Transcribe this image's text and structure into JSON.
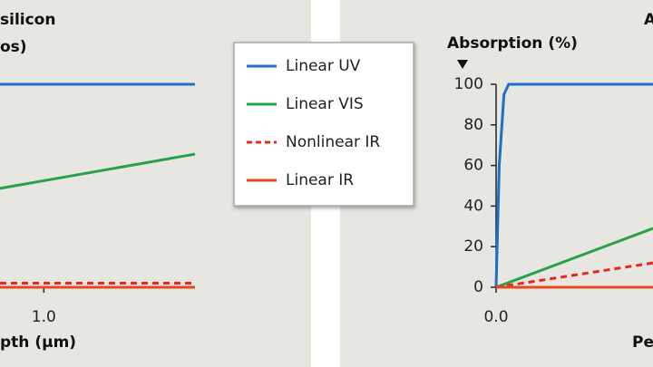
{
  "chart_data": [
    {
      "type": "line",
      "title": "silicon",
      "subtitle": "os)",
      "xlabel": "pth (µm)",
      "x": [
        0.71,
        2.0
      ],
      "xlim": [
        0.71,
        2.0
      ],
      "xticks": [
        {
          "value": 1.0,
          "label": "1.0"
        }
      ],
      "ylim": [
        0,
        100
      ],
      "legend": true,
      "series": [
        {
          "name": "Linear UV",
          "color": "#1f6fc9",
          "dashed": false,
          "values": [
            100,
            100
          ]
        },
        {
          "name": "Linear VIS",
          "color": "#27a24a",
          "dashed": false,
          "values": [
            48.7,
            65.6
          ]
        },
        {
          "name": "Nonlinear IR",
          "color": "#e8281e",
          "dashed": true,
          "values": [
            2,
            2
          ]
        },
        {
          "name": "Linear IR",
          "color": "#e84a1e",
          "dashed": false,
          "values": [
            0,
            0
          ]
        }
      ]
    },
    {
      "type": "line",
      "title": "A",
      "ylabel": "Absorption (%)",
      "xlabel": "Pe",
      "x": [
        0,
        0.02,
        0.05,
        0.08,
        1.0
      ],
      "xlim": [
        0,
        1.0
      ],
      "xticks": [
        {
          "value": 0,
          "label": "0.0"
        }
      ],
      "ylim": [
        0,
        100
      ],
      "yticks": [
        0,
        20,
        40,
        60,
        80,
        100
      ],
      "legend": false,
      "series": [
        {
          "color": "#1f6fc9",
          "dashed": false,
          "values": [
            0,
            60,
            95,
            100,
            100
          ]
        },
        {
          "color": "#27a24a",
          "dashed": false,
          "values": [
            0,
            0.58,
            1.45,
            2.32,
            29
          ]
        },
        {
          "color": "#e8281e",
          "dashed": true,
          "values": [
            0,
            0.24,
            0.6,
            0.96,
            12
          ]
        },
        {
          "color": "#e84a1e",
          "dashed": false,
          "values": [
            0,
            0,
            0,
            0,
            0
          ]
        }
      ]
    }
  ]
}
